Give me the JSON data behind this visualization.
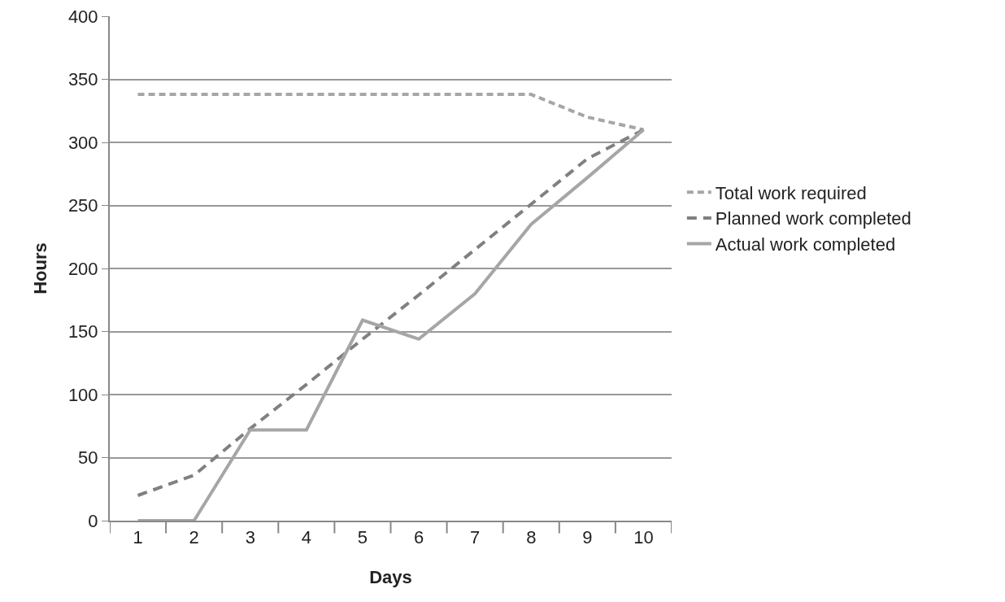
{
  "chart_data": {
    "type": "line",
    "xlabel": "Days",
    "ylabel": "Hours",
    "categories": [
      "1",
      "2",
      "3",
      "4",
      "5",
      "6",
      "7",
      "8",
      "9",
      "10"
    ],
    "series": [
      {
        "name": "Total work required",
        "color": "#a6a6a6",
        "line_style": "dotted",
        "values": [
          338,
          338,
          338,
          338,
          338,
          338,
          338,
          338,
          320,
          310
        ]
      },
      {
        "name": "Planned work completed",
        "color": "#808080",
        "line_style": "dashed",
        "values": [
          20,
          36,
          73,
          108,
          144,
          179,
          215,
          251,
          287,
          310
        ]
      },
      {
        "name": "Actual work completed",
        "color": "#a6a6a6",
        "line_style": "solid",
        "values": [
          0,
          0,
          72,
          72,
          159,
          144,
          180,
          235,
          272,
          310
        ]
      }
    ],
    "ylim": [
      0,
      400
    ],
    "yticks": [
      0,
      50,
      100,
      150,
      200,
      250,
      300,
      350,
      400
    ],
    "grid": "y",
    "legend": "right",
    "marker": "none"
  }
}
